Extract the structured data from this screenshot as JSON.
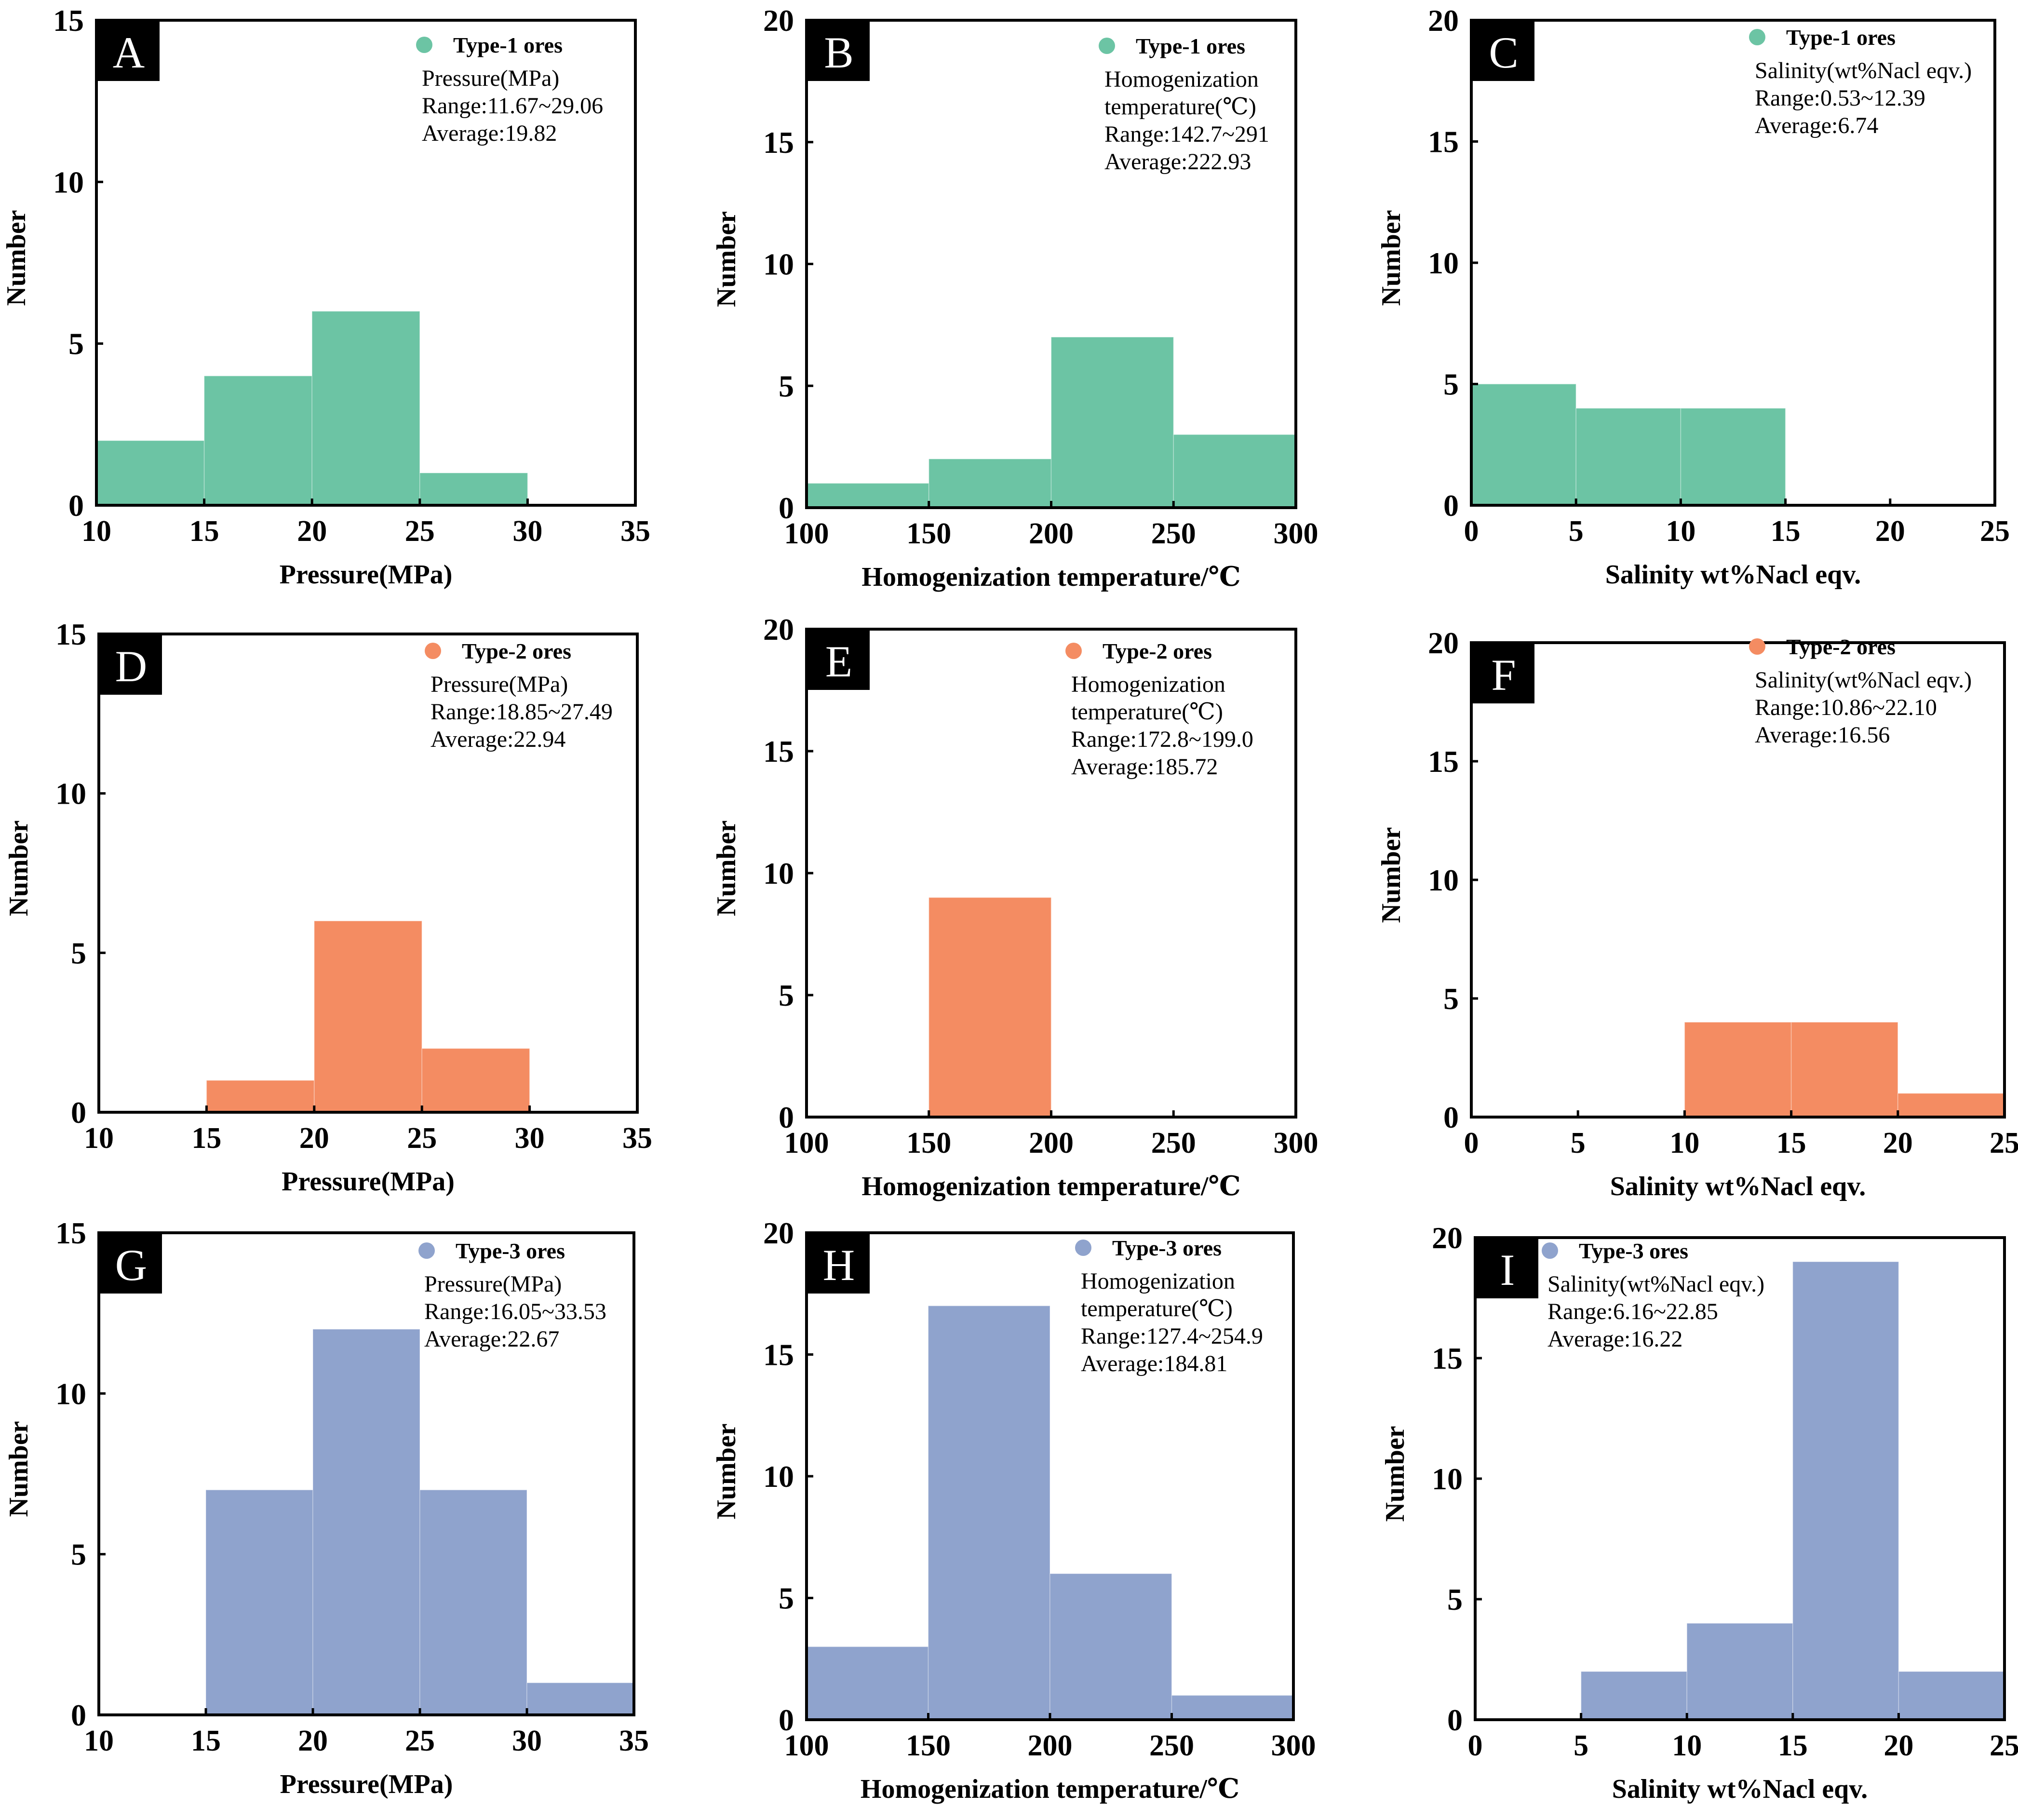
{
  "figure": {
    "colors": {
      "type1": "#6cc4a4",
      "type2": "#f48c62",
      "type3": "#8fa3cd",
      "frame": "#000000"
    }
  },
  "chart_data": [
    {
      "id": "A",
      "type": "bar",
      "letter": "A",
      "title": "",
      "xlabel": "Pressure(MPa)",
      "ylabel": "Number",
      "xlim": [
        10,
        35
      ],
      "ylim": [
        0,
        15
      ],
      "xticks": [
        "10",
        "15",
        "20",
        "25",
        "30",
        "35"
      ],
      "yticks": [
        "0",
        "5",
        "10",
        "15"
      ],
      "bins": [
        [
          10,
          15
        ],
        [
          15,
          20
        ],
        [
          20,
          25
        ],
        [
          25,
          30
        ]
      ],
      "values": [
        2,
        4,
        6,
        1
      ],
      "color": "#6cc4a4",
      "legend": {
        "series": "Type-1 ores",
        "lines": [
          "Pressure(MPa)",
          "Range:11.67~29.06",
          "Average:19.82"
        ]
      }
    },
    {
      "id": "B",
      "type": "bar",
      "letter": "B",
      "title": "",
      "xlabel": "Homogenization temperature/℃",
      "ylabel": "Number",
      "xlim": [
        100,
        300
      ],
      "ylim": [
        0,
        20
      ],
      "xticks": [
        "100",
        "150",
        "200",
        "250",
        "300"
      ],
      "yticks": [
        "0",
        "5",
        "10",
        "15",
        "20"
      ],
      "bins": [
        [
          100,
          150
        ],
        [
          150,
          200
        ],
        [
          200,
          250
        ],
        [
          250,
          300
        ]
      ],
      "values": [
        1,
        2,
        7,
        3
      ],
      "color": "#6cc4a4",
      "legend": {
        "series": "Type-1 ores",
        "lines": [
          "Homogenization",
          "temperature(℃)",
          "Range:142.7~291",
          "Average:222.93"
        ]
      }
    },
    {
      "id": "C",
      "type": "bar",
      "letter": "C",
      "title": "",
      "xlabel": "Salinity wt%Nacl eqv.",
      "ylabel": "Number",
      "xlim": [
        0,
        25
      ],
      "ylim": [
        0,
        20
      ],
      "xticks": [
        "0",
        "5",
        "10",
        "15",
        "20",
        "25"
      ],
      "yticks": [
        "0",
        "5",
        "10",
        "15",
        "20"
      ],
      "bins": [
        [
          0,
          5
        ],
        [
          5,
          10
        ],
        [
          10,
          15
        ]
      ],
      "values": [
        5,
        4,
        4
      ],
      "color": "#6cc4a4",
      "legend": {
        "series": "Type-1 ores",
        "lines": [
          "Salinity(wt%Nacl eqv.)",
          "Range:0.53~12.39",
          "Average:6.74"
        ]
      }
    },
    {
      "id": "D",
      "type": "bar",
      "letter": "D",
      "title": "",
      "xlabel": "Pressure(MPa)",
      "ylabel": "Number",
      "xlim": [
        10,
        35
      ],
      "ylim": [
        0,
        15
      ],
      "xticks": [
        "10",
        "15",
        "20",
        "25",
        "30",
        "35"
      ],
      "yticks": [
        "0",
        "5",
        "10",
        "15"
      ],
      "bins": [
        [
          15,
          20
        ],
        [
          20,
          25
        ],
        [
          25,
          30
        ]
      ],
      "values": [
        1,
        6,
        2
      ],
      "color": "#f48c62",
      "legend": {
        "series": "Type-2 ores",
        "lines": [
          "Pressure(MPa)",
          "Range:18.85~27.49",
          "Average:22.94"
        ]
      }
    },
    {
      "id": "E",
      "type": "bar",
      "letter": "E",
      "title": "",
      "xlabel": "Homogenization temperature/℃",
      "ylabel": "Number",
      "xlim": [
        100,
        300
      ],
      "ylim": [
        0,
        20
      ],
      "xticks": [
        "100",
        "150",
        "200",
        "250",
        "300"
      ],
      "yticks": [
        "0",
        "5",
        "10",
        "15",
        "20"
      ],
      "bins": [
        [
          150,
          200
        ]
      ],
      "values": [
        9
      ],
      "color": "#f48c62",
      "legend": {
        "series": "Type-2 ores",
        "lines": [
          "Homogenization",
          "temperature(℃)",
          "Range:172.8~199.0",
          "Average:185.72"
        ]
      }
    },
    {
      "id": "F",
      "type": "bar",
      "letter": "F",
      "title": "",
      "xlabel": "Salinity wt%Nacl eqv.",
      "ylabel": "Number",
      "xlim": [
        0,
        25
      ],
      "ylim": [
        0,
        20
      ],
      "xticks": [
        "0",
        "5",
        "10",
        "15",
        "20",
        "25"
      ],
      "yticks": [
        "0",
        "5",
        "10",
        "15",
        "20"
      ],
      "bins": [
        [
          10,
          15
        ],
        [
          15,
          20
        ],
        [
          20,
          25
        ]
      ],
      "values": [
        4,
        4,
        1
      ],
      "color": "#f48c62",
      "legend": {
        "series": "Type-2 ores",
        "lines": [
          "Salinity(wt%Nacl eqv.)",
          "Range:10.86~22.10",
          "Average:16.56"
        ]
      }
    },
    {
      "id": "G",
      "type": "bar",
      "letter": "G",
      "title": "",
      "xlabel": "Pressure(MPa)",
      "ylabel": "Number",
      "xlim": [
        10,
        35
      ],
      "ylim": [
        0,
        15
      ],
      "xticks": [
        "10",
        "15",
        "20",
        "25",
        "30",
        "35"
      ],
      "yticks": [
        "0",
        "5",
        "10",
        "15"
      ],
      "bins": [
        [
          15,
          20
        ],
        [
          20,
          25
        ],
        [
          25,
          30
        ],
        [
          30,
          35
        ]
      ],
      "values": [
        7,
        12,
        7,
        1
      ],
      "color": "#8fa3cd",
      "legend": {
        "series": "Type-3 ores",
        "lines": [
          "Pressure(MPa)",
          "Range:16.05~33.53",
          "Average:22.67"
        ]
      }
    },
    {
      "id": "H",
      "type": "bar",
      "letter": "H",
      "title": "",
      "xlabel": "Homogenization temperature/℃",
      "ylabel": "Number",
      "xlim": [
        100,
        300
      ],
      "ylim": [
        0,
        20
      ],
      "xticks": [
        "100",
        "150",
        "200",
        "250",
        "300"
      ],
      "yticks": [
        "0",
        "5",
        "10",
        "15",
        "20"
      ],
      "bins": [
        [
          100,
          150
        ],
        [
          150,
          200
        ],
        [
          200,
          250
        ],
        [
          250,
          300
        ]
      ],
      "values": [
        3,
        17,
        6,
        1
      ],
      "color": "#8fa3cd",
      "legend": {
        "series": "Type-3 ores",
        "lines": [
          "Homogenization",
          "temperature(℃)",
          "Range:127.4~254.9",
          "Average:184.81"
        ]
      }
    },
    {
      "id": "I",
      "type": "bar",
      "letter": "I",
      "title": "",
      "xlabel": "Salinity wt%Nacl eqv.",
      "ylabel": "Number",
      "xlim": [
        0,
        25
      ],
      "ylim": [
        0,
        20
      ],
      "xticks": [
        "0",
        "5",
        "10",
        "15",
        "20",
        "25"
      ],
      "yticks": [
        "0",
        "5",
        "10",
        "15",
        "20"
      ],
      "bins": [
        [
          5,
          10
        ],
        [
          10,
          15
        ],
        [
          15,
          20
        ],
        [
          20,
          25
        ]
      ],
      "values": [
        2,
        4,
        19,
        2
      ],
      "color": "#8fa3cd",
      "legend": {
        "series": "Type-3 ores",
        "lines": [
          "Salinity(wt%Nacl eqv.)",
          "Range:6.16~22.85",
          "Average:16.22"
        ]
      }
    }
  ]
}
